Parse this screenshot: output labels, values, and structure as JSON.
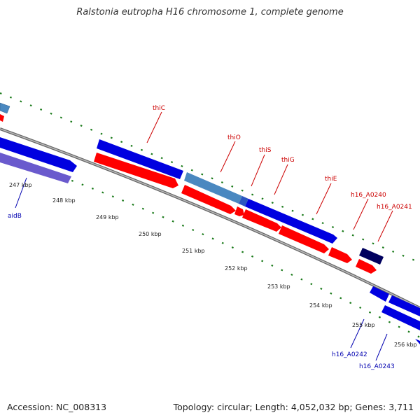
{
  "title": "Ralstonia eutropha H16 chromosome 1, complete genome",
  "genes": [
    {
      "name": "thiC",
      "strand": "forward"
    },
    {
      "name": "thiO",
      "strand": "forward"
    },
    {
      "name": "thiS",
      "strand": "forward"
    },
    {
      "name": "thiG",
      "strand": "forward"
    },
    {
      "name": "thiE",
      "strand": "forward"
    },
    {
      "name": "h16_A0240",
      "strand": "forward"
    },
    {
      "name": "h16_A0241",
      "strand": "forward"
    },
    {
      "name": "aidB",
      "strand": "reverse"
    },
    {
      "name": "h16_A0242",
      "strand": "reverse"
    },
    {
      "name": "h16_A0243",
      "strand": "reverse"
    }
  ],
  "ticks": [
    "247 kbp",
    "248 kbp",
    "249 kbp",
    "250 kbp",
    "251 kbp",
    "252 kbp",
    "253 kbp",
    "254 kbp",
    "255 kbp",
    "256 kbp"
  ],
  "colors": {
    "forward_label": "#cc0000",
    "reverse_label": "#0000b0",
    "tick_ring": "#1a7a1a",
    "backbone": "#666666"
  },
  "footer": {
    "accession": "Accession: NC_008313",
    "topology": "Topology: circular; Length: 4,052,032 bp; Genes: 3,711"
  }
}
